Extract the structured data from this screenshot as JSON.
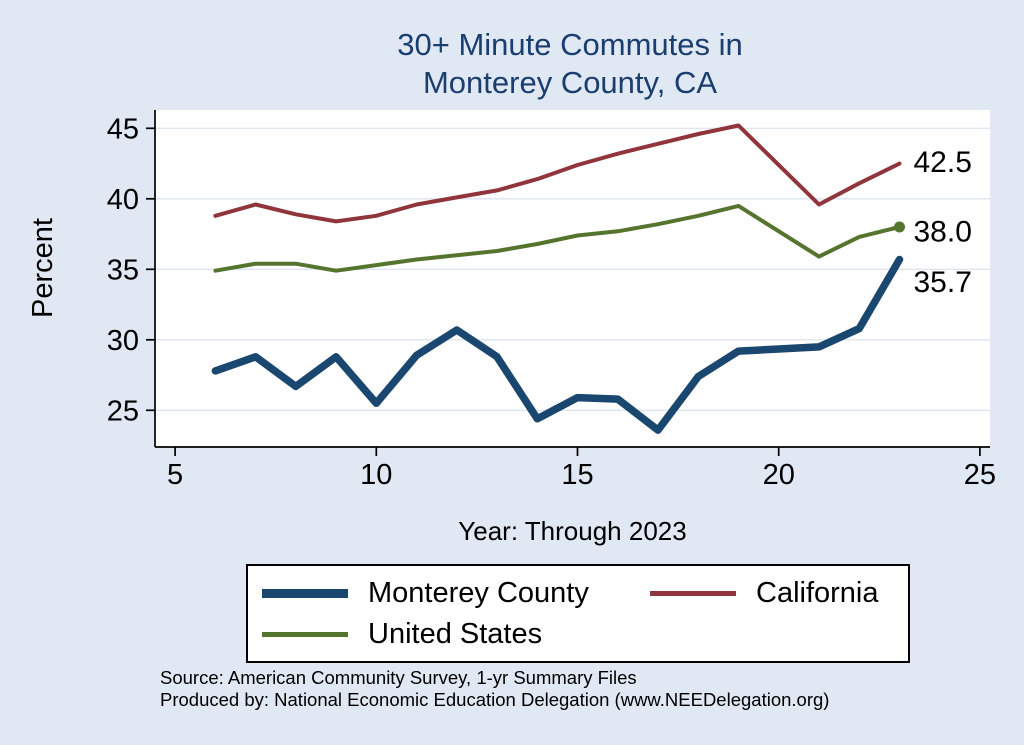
{
  "title_lines": [
    "30+ Minute Commutes in",
    "Monterey County, CA"
  ],
  "title_color": "#1a3e6e",
  "footer": {
    "source": "Source: American Community Survey, 1-yr Summary Files",
    "produced": "Produced by: National Economic Education Delegation (www.NEEDelegation.org)"
  },
  "chart_data": {
    "type": "line",
    "title": "30+ Minute Commutes in Monterey County, CA",
    "xlabel": "Year: Through 2023",
    "ylabel": "Percent",
    "xlim": [
      4.5,
      25.25
    ],
    "ylim": [
      22.4,
      46.3
    ],
    "xticks": [
      5,
      10,
      15,
      20,
      25
    ],
    "yticks": [
      25,
      30,
      35,
      40,
      45
    ],
    "grid": "horizontal",
    "legend_position": "bottom",
    "x": [
      6,
      7,
      8,
      9,
      10,
      11,
      12,
      13,
      14,
      15,
      16,
      17,
      18,
      19,
      21,
      22,
      23
    ],
    "note": "No data point for year 20 (2020); lines connect 19 to 21 directly",
    "series": [
      {
        "name": "Monterey County",
        "color": "#1a476f",
        "line_width": 7.5,
        "end_label": "35.7",
        "y": [
          27.8,
          28.8,
          26.7,
          28.8,
          25.5,
          28.9,
          30.7,
          28.8,
          24.4,
          25.9,
          25.8,
          23.6,
          27.4,
          29.2,
          29.5,
          30.8,
          35.7
        ]
      },
      {
        "name": "California",
        "color": "#90353b",
        "line_width": 4,
        "end_label": "42.5",
        "y": [
          38.8,
          39.6,
          38.9,
          38.4,
          38.8,
          39.6,
          40.1,
          40.6,
          41.4,
          42.4,
          43.2,
          43.9,
          44.6,
          45.2,
          39.6,
          41.1,
          42.5
        ]
      },
      {
        "name": "United States",
        "color": "#55752f",
        "line_width": 4,
        "end_label": "38.0",
        "end_marker": true,
        "y": [
          34.9,
          35.4,
          35.4,
          34.9,
          35.3,
          35.7,
          36.0,
          36.3,
          36.8,
          37.4,
          37.7,
          38.2,
          38.8,
          39.5,
          35.9,
          37.3,
          38.0
        ]
      }
    ]
  }
}
